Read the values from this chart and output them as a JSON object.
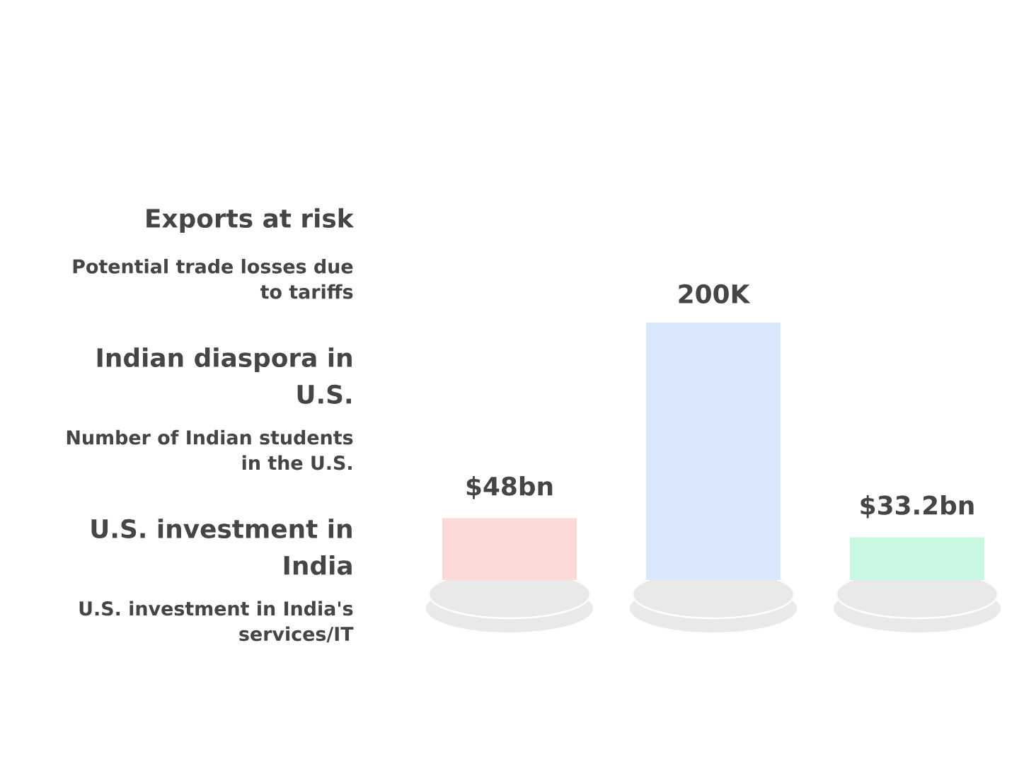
{
  "chart_data": {
    "type": "bar",
    "categories": [
      null,
      null,
      null
    ],
    "values": [
      48,
      200,
      33.2
    ],
    "value_labels": [
      "$48bn",
      "200K",
      "$33.2bn"
    ],
    "colors": [
      "#fdd9d9",
      "#dbe7fd",
      "#c8f8e2"
    ],
    "annotations": [
      "Exports at risk",
      "Potential trade losses due to tariffs",
      "Indian diaspora in U.S.",
      "Number of Indian students in the U.S.",
      "U.S. investment in India",
      "U.S. investment in India's services/IT"
    ]
  }
}
